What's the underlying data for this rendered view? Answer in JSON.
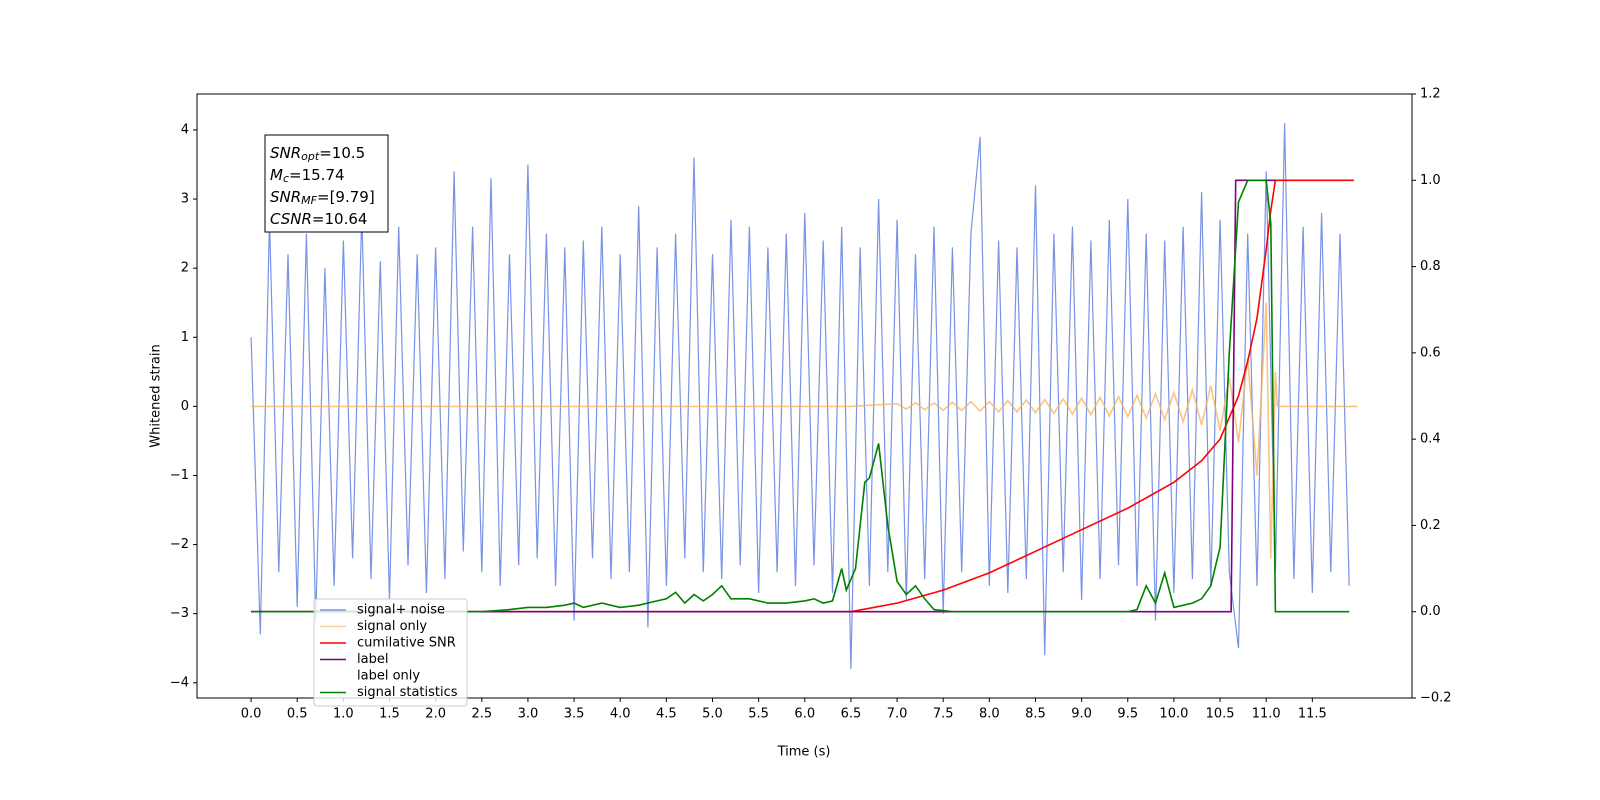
{
  "chart_data": {
    "type": "line",
    "xlabel": "Time (s)",
    "ylabel": "Whitened strain",
    "xlim": [
      -0.586,
      12.58
    ],
    "ylim": [
      -4.22,
      4.52
    ],
    "y2lim": [
      -0.2,
      1.2
    ],
    "xticks": [
      {
        "value": 0,
        "label": "0.0"
      },
      0.5,
      {
        "value": 1,
        "label": "1.0"
      },
      1.5,
      {
        "value": 2,
        "label": "2.0"
      },
      2.5,
      {
        "value": 3,
        "label": "3.0"
      },
      3.5,
      {
        "value": 4,
        "label": "4.0"
      },
      4.5,
      {
        "value": 5,
        "label": "5.0"
      },
      5.5,
      {
        "value": 6,
        "label": "6.0"
      },
      6.5,
      {
        "value": 7,
        "label": "7.0"
      },
      7.5,
      {
        "value": 8,
        "label": "8.0"
      },
      8.5,
      {
        "value": 9,
        "label": "9.0"
      },
      9.5,
      {
        "value": 10,
        "label": "10.0"
      },
      10.5,
      {
        "value": 11,
        "label": "11.0"
      },
      11.5
    ],
    "yticks": [
      {
        "value": -4,
        "label": "−4"
      },
      {
        "value": -3,
        "label": "−3"
      },
      {
        "value": -2,
        "label": "−2"
      },
      {
        "value": -1,
        "label": "−1"
      },
      0,
      1,
      2,
      3,
      4
    ],
    "y2ticks": [
      {
        "value": -0.2,
        "label": "−0.2"
      },
      {
        "value": 0,
        "label": "0.0"
      },
      0.2,
      0.4,
      0.6,
      0.8,
      {
        "value": 1,
        "label": "1.0"
      },
      1.2
    ],
    "legend": "lower left",
    "annotations": [
      {
        "symbol": "SNR",
        "subscript": "opt",
        "text": "=10.5"
      },
      {
        "symbol": "M",
        "subscript": "c",
        "text": "=15.74"
      },
      {
        "symbol": "SNR",
        "subscript": "MF",
        "text": "=[9.79]"
      },
      {
        "symbol": "CSNR",
        "text": "=10.64"
      }
    ],
    "series": [
      {
        "name": "signal+ noise",
        "color": "#7892e6",
        "axis": "y",
        "x": [
          0.0,
          0.1,
          0.2,
          0.3,
          0.4,
          0.5,
          0.6,
          0.7,
          0.8,
          0.9,
          1.0,
          1.1,
          1.2,
          1.3,
          1.4,
          1.5,
          1.6,
          1.7,
          1.8,
          1.9,
          2.0,
          2.1,
          2.2,
          2.3,
          2.4,
          2.5,
          2.6,
          2.7,
          2.8,
          2.9,
          3.0,
          3.1,
          3.2,
          3.3,
          3.4,
          3.5,
          3.6,
          3.7,
          3.8,
          3.9,
          4.0,
          4.1,
          4.2,
          4.3,
          4.4,
          4.5,
          4.6,
          4.7,
          4.8,
          4.9,
          5.0,
          5.1,
          5.2,
          5.3,
          5.4,
          5.5,
          5.6,
          5.7,
          5.8,
          5.9,
          6.0,
          6.1,
          6.2,
          6.3,
          6.4,
          6.5,
          6.6,
          6.7,
          6.8,
          6.9,
          7.0,
          7.1,
          7.2,
          7.3,
          7.4,
          7.5,
          7.6,
          7.7,
          7.8,
          7.9,
          8.0,
          8.1,
          8.2,
          8.3,
          8.4,
          8.5,
          8.6,
          8.7,
          8.8,
          8.9,
          9.0,
          9.1,
          9.2,
          9.3,
          9.4,
          9.5,
          9.6,
          9.7,
          9.8,
          9.9,
          10.0,
          10.1,
          10.2,
          10.3,
          10.4,
          10.5,
          10.6,
          10.7,
          10.8,
          10.9,
          11.0,
          11.1,
          11.2,
          11.3,
          11.4,
          11.5,
          11.6,
          11.7,
          11.8,
          11.9
        ],
        "values": [
          1.0,
          -3.3,
          2.7,
          -2.4,
          2.2,
          -2.9,
          2.5,
          -3.1,
          2.0,
          -2.6,
          2.4,
          -2.2,
          2.8,
          -2.5,
          2.1,
          -2.8,
          2.6,
          -2.3,
          2.2,
          -2.7,
          2.3,
          -2.5,
          3.4,
          -2.1,
          2.6,
          -2.4,
          3.3,
          -2.6,
          2.2,
          -2.3,
          3.5,
          -2.2,
          2.5,
          -2.6,
          2.3,
          -3.1,
          2.4,
          -2.2,
          2.6,
          -2.5,
          2.2,
          -2.4,
          2.9,
          -3.2,
          2.3,
          -2.6,
          2.5,
          -2.2,
          3.6,
          -2.4,
          2.2,
          -2.5,
          2.7,
          -2.3,
          2.6,
          -2.7,
          2.3,
          -2.4,
          2.5,
          -2.6,
          2.8,
          -2.3,
          2.4,
          -2.7,
          2.6,
          -3.8,
          2.3,
          -2.6,
          3.0,
          -2.4,
          2.7,
          -2.8,
          2.2,
          -2.5,
          2.6,
          -3.0,
          2.3,
          -2.4,
          2.5,
          3.9,
          -2.6,
          2.4,
          -2.7,
          2.3,
          -2.5,
          3.2,
          -3.6,
          2.5,
          -2.4,
          2.6,
          -2.8,
          2.4,
          -2.5,
          2.7,
          -2.3,
          3.0,
          -2.6,
          2.5,
          -3.1,
          2.4,
          -2.7,
          2.6,
          -2.5,
          3.1,
          -2.6,
          2.7,
          -2.4,
          -3.5,
          2.5,
          -2.6,
          3.4,
          -2.4,
          4.1,
          -2.5,
          2.6,
          -2.7,
          2.8,
          -2.4,
          2.5,
          -2.6
        ]
      },
      {
        "name": "signal only",
        "color": "#f5b25a",
        "axis": "y",
        "x": [
          0,
          6.5,
          7.0,
          7.1,
          7.2,
          7.3,
          7.4,
          7.5,
          7.6,
          7.7,
          7.8,
          7.9,
          8.0,
          8.1,
          8.2,
          8.3,
          8.4,
          8.5,
          8.6,
          8.7,
          8.8,
          8.9,
          9.0,
          9.1,
          9.2,
          9.3,
          9.4,
          9.5,
          9.6,
          9.7,
          9.8,
          9.9,
          10.0,
          10.1,
          10.2,
          10.3,
          10.4,
          10.5,
          10.6,
          10.7,
          10.8,
          10.9,
          11.0,
          11.05,
          11.1,
          11.12,
          11.99
        ],
        "values": [
          0,
          0,
          0.04,
          -0.04,
          0.05,
          -0.05,
          0.05,
          -0.06,
          0.06,
          -0.06,
          0.07,
          -0.07,
          0.07,
          -0.08,
          0.08,
          -0.08,
          0.09,
          -0.09,
          0.1,
          -0.1,
          0.11,
          -0.11,
          0.12,
          -0.12,
          0.13,
          -0.14,
          0.14,
          -0.15,
          0.16,
          -0.17,
          0.18,
          -0.19,
          0.2,
          -0.22,
          0.24,
          -0.27,
          0.3,
          -0.35,
          0.42,
          -0.52,
          0.7,
          -1.0,
          1.5,
          -2.2,
          0.5,
          0,
          0
        ]
      },
      {
        "name": "cumilative SNR",
        "color": "#ff0000",
        "axis": "y2",
        "x": [
          0,
          6.5,
          7.0,
          7.5,
          8.0,
          8.5,
          9.0,
          9.5,
          10.0,
          10.3,
          10.5,
          10.7,
          10.8,
          10.9,
          11.0,
          11.05,
          11.1,
          11.95
        ],
        "values": [
          0,
          0,
          0.02,
          0.05,
          0.09,
          0.14,
          0.19,
          0.24,
          0.3,
          0.35,
          0.4,
          0.5,
          0.58,
          0.68,
          0.84,
          0.93,
          1.0,
          1.0
        ]
      },
      {
        "name": "label",
        "color": "#800080",
        "axis": "y2",
        "x": [
          0,
          10.62,
          10.67,
          11.1
        ],
        "values": [
          0,
          0,
          1,
          1
        ]
      },
      {
        "name": "label only",
        "color": "#ffffff",
        "axis": "y2",
        "x": [],
        "values": []
      },
      {
        "name": "signal statistics",
        "color": "#008000",
        "axis": "y2",
        "x": [
          0,
          2.5,
          2.8,
          3.0,
          3.2,
          3.4,
          3.5,
          3.6,
          3.8,
          4.0,
          4.2,
          4.4,
          4.5,
          4.6,
          4.7,
          4.8,
          4.9,
          5.0,
          5.1,
          5.2,
          5.4,
          5.6,
          5.8,
          6.0,
          6.1,
          6.2,
          6.3,
          6.4,
          6.45,
          6.55,
          6.65,
          6.7,
          6.8,
          6.9,
          7.0,
          7.1,
          7.2,
          7.3,
          7.4,
          7.6,
          9.5,
          9.6,
          9.7,
          9.8,
          9.9,
          10.0,
          10.2,
          10.3,
          10.4,
          10.5,
          10.6,
          10.7,
          10.8,
          11.0,
          11.05,
          11.1,
          11.9
        ],
        "values": [
          0,
          0,
          0.005,
          0.01,
          0.01,
          0.015,
          0.02,
          0.01,
          0.02,
          0.01,
          0.015,
          0.025,
          0.03,
          0.045,
          0.02,
          0.04,
          0.025,
          0.04,
          0.06,
          0.03,
          0.03,
          0.02,
          0.02,
          0.025,
          0.03,
          0.02,
          0.025,
          0.1,
          0.05,
          0.1,
          0.3,
          0.31,
          0.39,
          0.2,
          0.07,
          0.04,
          0.06,
          0.03,
          0.005,
          0,
          0,
          0.005,
          0.06,
          0.02,
          0.09,
          0.01,
          0.02,
          0.03,
          0.06,
          0.15,
          0.6,
          0.95,
          1.0,
          1.0,
          0.9,
          0.0,
          0
        ]
      }
    ]
  }
}
